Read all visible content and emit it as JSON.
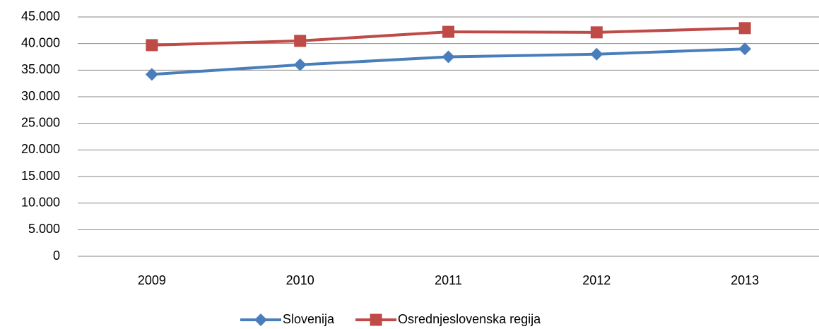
{
  "chart_data": {
    "type": "line",
    "categories": [
      "2009",
      "2010",
      "2011",
      "2012",
      "2013"
    ],
    "series": [
      {
        "name": "Slovenija",
        "color": "#4a7ebb",
        "marker": "diamond",
        "values": [
          34200,
          36000,
          37500,
          38000,
          39000
        ]
      },
      {
        "name": "Osrednjeslovenska regija",
        "color": "#be4b48",
        "marker": "square",
        "values": [
          39700,
          40500,
          42200,
          42100,
          42900
        ]
      }
    ],
    "ylim": [
      0,
      45000
    ],
    "yticks": [
      0,
      {
        "value": 5000,
        "label": "5.000"
      },
      {
        "value": 10000,
        "label": "10.000"
      },
      {
        "value": 15000,
        "label": "15.000"
      },
      {
        "value": 20000,
        "label": "20.000"
      },
      {
        "value": 25000,
        "label": "25.000"
      },
      {
        "value": 30000,
        "label": "30.000"
      },
      {
        "value": 35000,
        "label": "35.000"
      },
      {
        "value": 40000,
        "label": "40.000"
      },
      {
        "value": 45000,
        "label": "45.000"
      }
    ],
    "grid": true,
    "legend": "bottom"
  }
}
